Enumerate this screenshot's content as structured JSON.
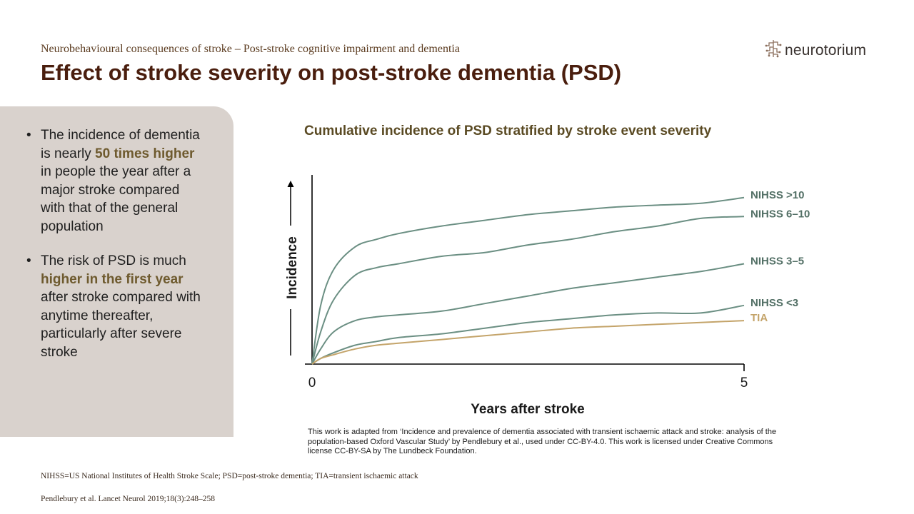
{
  "header": {
    "subtitle": "Neurobehavioural  consequences of stroke – Post-stroke cognitive impairment  and dementia",
    "title": "Effect of stroke severity on post-stroke dementia (PSD)",
    "logo_text": "neurotorium"
  },
  "sidebar": {
    "bullet1": {
      "pre": "The incidence of dementia is nearly ",
      "highlight": "50 times higher",
      "post": " in people the year after a major stroke compared with that of the general population"
    },
    "bullet2": {
      "pre": "The risk of PSD is much ",
      "highlight": "higher in the first year",
      "post": " after stroke compared with anytime thereafter, particularly after severe stroke"
    }
  },
  "chart_data": {
    "type": "line",
    "title": "Cumulative incidence of PSD stratified by stroke event severity",
    "xlabel": "Years after stroke",
    "ylabel": "Incidence",
    "xlim": [
      0,
      5
    ],
    "ylim": [
      0,
      1
    ],
    "x_ticks": [
      "0",
      "5"
    ],
    "y_ticks": [],
    "grid": false,
    "legend": "line-end labels, right",
    "series": [
      {
        "name": "NIHSS >10",
        "color": "#6b8f83",
        "x": [
          0,
          0.1,
          0.25,
          0.5,
          0.75,
          1,
          1.5,
          2,
          2.5,
          3,
          3.5,
          4,
          4.5,
          5
        ],
        "y": [
          0,
          0.31,
          0.5,
          0.62,
          0.66,
          0.69,
          0.73,
          0.76,
          0.79,
          0.81,
          0.83,
          0.84,
          0.85,
          0.88
        ]
      },
      {
        "name": "NIHSS 6–10",
        "color": "#6b8f83",
        "x": [
          0,
          0.1,
          0.25,
          0.5,
          0.75,
          1,
          1.5,
          2,
          2.5,
          3,
          3.5,
          4,
          4.5,
          5
        ],
        "y": [
          0,
          0.17,
          0.34,
          0.47,
          0.51,
          0.53,
          0.57,
          0.59,
          0.63,
          0.66,
          0.7,
          0.73,
          0.77,
          0.78
        ]
      },
      {
        "name": "NIHSS 3–5",
        "color": "#6b8f83",
        "x": [
          0,
          0.1,
          0.25,
          0.5,
          0.75,
          1,
          1.5,
          2,
          2.5,
          3,
          3.5,
          4,
          4.5,
          5
        ],
        "y": [
          0,
          0.08,
          0.17,
          0.23,
          0.25,
          0.26,
          0.28,
          0.32,
          0.36,
          0.4,
          0.43,
          0.46,
          0.49,
          0.53
        ]
      },
      {
        "name": "NIHSS <3",
        "color": "#6b8f83",
        "x": [
          0,
          0.1,
          0.25,
          0.5,
          0.75,
          1,
          1.5,
          2,
          2.5,
          3,
          3.5,
          4,
          4.5,
          5
        ],
        "y": [
          0,
          0.03,
          0.06,
          0.1,
          0.12,
          0.14,
          0.16,
          0.19,
          0.22,
          0.24,
          0.26,
          0.27,
          0.27,
          0.31
        ]
      },
      {
        "name": "TIA",
        "color": "#c4a46a",
        "x": [
          0,
          0.1,
          0.25,
          0.5,
          0.75,
          1,
          1.5,
          2,
          2.5,
          3,
          3.5,
          4,
          4.5,
          5
        ],
        "y": [
          0,
          0.03,
          0.05,
          0.08,
          0.1,
          0.11,
          0.13,
          0.15,
          0.17,
          0.19,
          0.2,
          0.21,
          0.22,
          0.23
        ]
      }
    ],
    "colors": {
      "axis": "#000000",
      "curve": "#6b8f83",
      "tia": "#c4a46a",
      "label": "#526f65"
    }
  },
  "credit": "This work is adapted from ‘Incidence and prevalence of dementia associated with transient ischaemic attack and stroke: analysis of the population-based Oxford Vascular Study’ by Pendlebury et al., used under CC-BY-4.0. This work is licensed under Creative Commons license CC-BY-SA by The Lundbeck Foundation.",
  "footer": {
    "abbreviations": "NIHSS=US National Institutes of Health Stroke Scale; PSD=post-stroke dementia; TIA=transient ischaemic attack",
    "reference": "Pendlebury et al. Lancet Neurol 2019;18(3):248–258"
  }
}
